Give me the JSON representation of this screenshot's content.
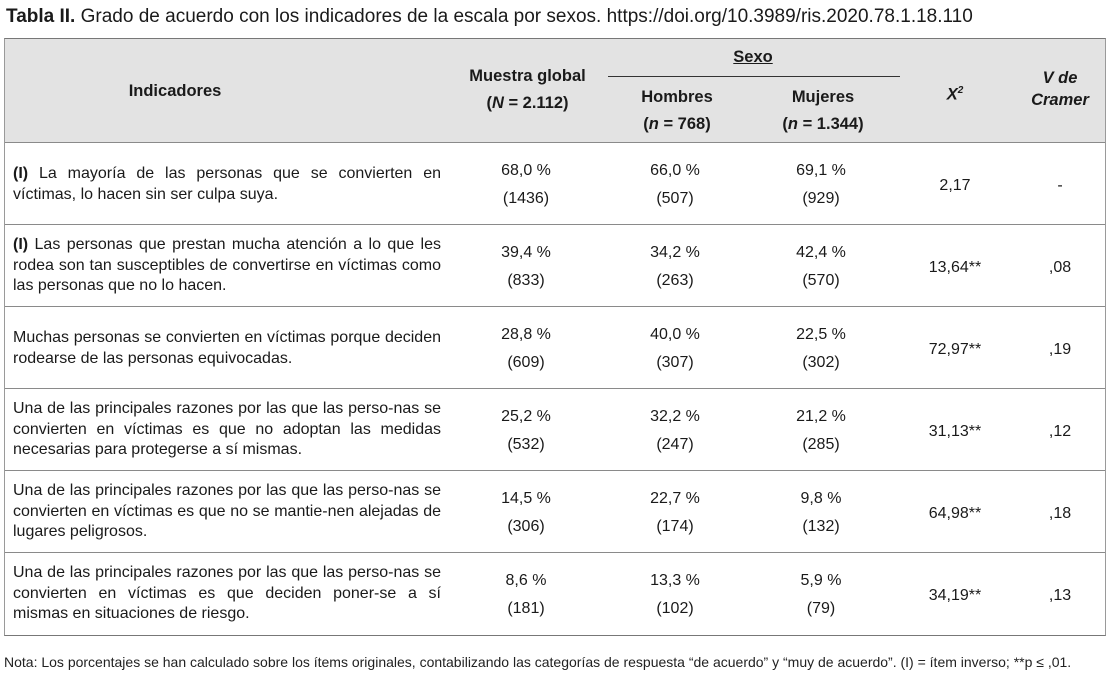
{
  "caption": {
    "label": "Tabla II.",
    "text": "Grado de acuerdo con los indicadores de la escala por sexos. https://doi.org/10.3989/ris.2020.78.1.18.110"
  },
  "header": {
    "indicadores": "Indicadores",
    "muestra_label": "Muestra global",
    "muestra_n": "(N = 2.112)",
    "sexo": "Sexo",
    "hombres_label": "Hombres",
    "hombres_n": "(n = 768)",
    "mujeres_label": "Mujeres",
    "mujeres_n": "(n = 1.344)",
    "chi": "X²",
    "cramer_1": "V de",
    "cramer_2": "Cramer"
  },
  "rows": [
    {
      "prefix": "(I)",
      "text": "La mayoría de las personas que se convierten en víctimas, lo hacen sin ser culpa suya.",
      "global_pct": "68,0 %",
      "global_n": "(1436)",
      "hombres_pct": "66,0 %",
      "hombres_n": "(507)",
      "mujeres_pct": "69,1 %",
      "mujeres_n": "(929)",
      "chi": "2,17",
      "cramer": "-"
    },
    {
      "prefix": "(I)",
      "text": "Las personas que prestan mucha atención a lo que les rodea son tan susceptibles de convertirse en víctimas como las personas que no lo hacen.",
      "global_pct": "39,4 %",
      "global_n": "(833)",
      "hombres_pct": "34,2 %",
      "hombres_n": "(263)",
      "mujeres_pct": "42,4 %",
      "mujeres_n": "(570)",
      "chi": "13,64**",
      "cramer": ",08"
    },
    {
      "prefix": "",
      "text": "Muchas personas se convierten en víctimas porque deciden rodearse de las personas equivocadas.",
      "global_pct": "28,8 %",
      "global_n": "(609)",
      "hombres_pct": "40,0 %",
      "hombres_n": "(307)",
      "mujeres_pct": "22,5 %",
      "mujeres_n": "(302)",
      "chi": "72,97**",
      "cramer": ",19"
    },
    {
      "prefix": "",
      "text": "Una de las principales razones por las que las perso-nas se convierten en víctimas es que no adoptan las medidas necesarias para protegerse a sí mismas.",
      "global_pct": "25,2 %",
      "global_n": "(532)",
      "hombres_pct": "32,2 %",
      "hombres_n": "(247)",
      "mujeres_pct": "21,2 %",
      "mujeres_n": "(285)",
      "chi": "31,13**",
      "cramer": ",12"
    },
    {
      "prefix": "",
      "text": "Una de las principales razones por las que las perso-nas se convierten en víctimas es que no se mantie-nen alejadas de lugares peligrosos.",
      "global_pct": "14,5 %",
      "global_n": "(306)",
      "hombres_pct": "22,7 %",
      "hombres_n": "(174)",
      "mujeres_pct": "9,8 %",
      "mujeres_n": "(132)",
      "chi": "64,98**",
      "cramer": ",18"
    },
    {
      "prefix": "",
      "text": "Una de las principales razones por las que las perso-nas se convierten en víctimas es que deciden poner-se a sí mismas en situaciones de riesgo.",
      "global_pct": "8,6 %",
      "global_n": "(181)",
      "hombres_pct": "13,3 %",
      "hombres_n": "(102)",
      "mujeres_pct": "5,9 %",
      "mujeres_n": "(79)",
      "chi": "34,19**",
      "cramer": ",13"
    }
  ],
  "note": "Nota: Los porcentajes se han calculado sobre los ítems originales, contabilizando las categorías de respuesta “de acuerdo” y “muy de acuerdo”. (I) = ítem inverso; **p ≤ ,01."
}
